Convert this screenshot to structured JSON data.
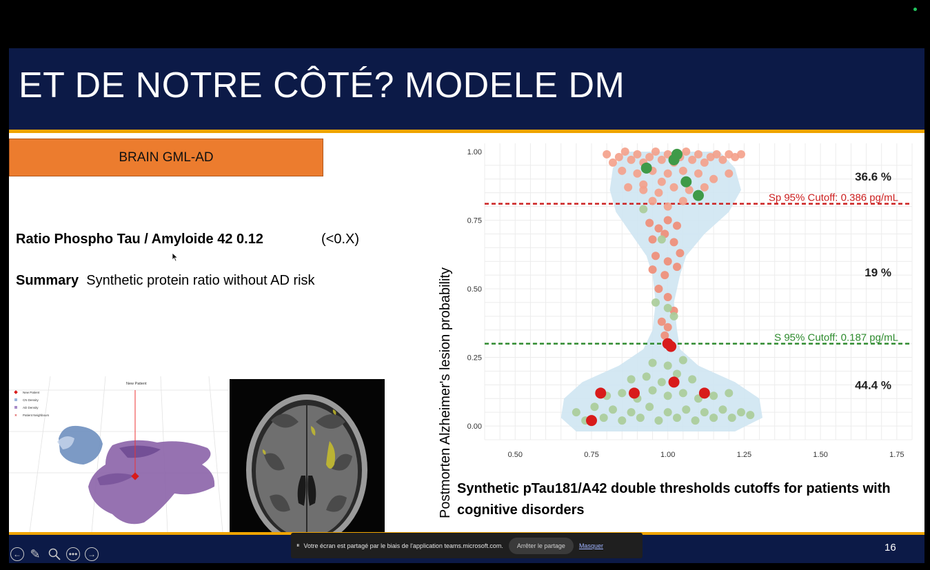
{
  "slide": {
    "title": "ET DE NOTRE CÔTÉ? MODELE DM",
    "badge": "BRAIN GML-AD",
    "ratio_line": "Ratio Phospho Tau / Amyloide 42  0.12",
    "ratio_hint": "(<0.X)",
    "summary_label": "Summary",
    "summary_text": "Synthetic protein ratio without AD risk",
    "page_number": "16",
    "figure_3d": {
      "title": "New Patient",
      "legend": [
        "New Patient",
        "CN Density",
        "AD Density",
        "Patient Neighbours"
      ]
    },
    "chart_caption": "Synthetic pTau181/A42 double thresholds cutoffs for patients with cognitive disorders"
  },
  "chart_data": {
    "type": "scatter",
    "ylabel": "Postmorten Alzheimer's lesion probability",
    "xlim": [
      0.4,
      1.8
    ],
    "ylim": [
      -0.05,
      1.03
    ],
    "xticks": [
      "0.50",
      "0.75",
      "1.00",
      "1.25",
      "1.50",
      "1.75"
    ],
    "yticks": [
      "0.00",
      "0.25",
      "0.50",
      "0.75",
      "1.00"
    ],
    "thresholds": [
      {
        "y": 0.81,
        "label": "Sp 95% Cutoff: 0.386 pg/mL",
        "color": "#cc2020"
      },
      {
        "y": 0.3,
        "label": "S 95% Cutoff: 0.187 pg/mL",
        "color": "#2e8b2e"
      }
    ],
    "region_labels": [
      {
        "y": 0.91,
        "text": "36.6 %"
      },
      {
        "y": 0.56,
        "text": "19 %"
      },
      {
        "y": 0.15,
        "text": "44.4 %"
      }
    ],
    "series": [
      {
        "group": "high",
        "color": "#f4a08a",
        "points": [
          [
            0.8,
            0.99
          ],
          [
            0.82,
            0.96
          ],
          [
            0.84,
            0.98
          ],
          [
            0.86,
            1.0
          ],
          [
            0.88,
            0.97
          ],
          [
            0.9,
            0.99
          ],
          [
            0.92,
            0.96
          ],
          [
            0.94,
            0.98
          ],
          [
            0.96,
            1.0
          ],
          [
            0.98,
            0.97
          ],
          [
            1.0,
            0.99
          ],
          [
            1.02,
            0.96
          ],
          [
            1.04,
            0.98
          ],
          [
            1.06,
            1.0
          ],
          [
            1.08,
            0.97
          ],
          [
            1.1,
            0.99
          ],
          [
            1.12,
            0.96
          ],
          [
            1.14,
            0.98
          ],
          [
            1.16,
            0.99
          ],
          [
            1.18,
            0.97
          ],
          [
            1.2,
            0.99
          ],
          [
            1.22,
            0.98
          ],
          [
            1.24,
            0.99
          ],
          [
            0.85,
            0.93
          ],
          [
            0.9,
            0.92
          ],
          [
            0.95,
            0.93
          ],
          [
            1.0,
            0.92
          ],
          [
            1.05,
            0.93
          ],
          [
            1.1,
            0.92
          ],
          [
            1.15,
            0.9
          ],
          [
            1.2,
            0.92
          ],
          [
            0.87,
            0.87
          ],
          [
            0.92,
            0.86
          ],
          [
            0.97,
            0.85
          ],
          [
            1.02,
            0.87
          ],
          [
            1.07,
            0.86
          ],
          [
            1.12,
            0.87
          ],
          [
            0.95,
            0.82
          ],
          [
            1.0,
            0.8
          ],
          [
            1.05,
            0.82
          ],
          [
            1.1,
            0.84
          ],
          [
            0.92,
            0.88
          ],
          [
            0.98,
            0.89
          ]
        ]
      },
      {
        "group": "mid",
        "color": "#f08c76",
        "points": [
          [
            0.94,
            0.74
          ],
          [
            0.97,
            0.72
          ],
          [
            1.0,
            0.75
          ],
          [
            1.03,
            0.73
          ],
          [
            0.95,
            0.68
          ],
          [
            0.99,
            0.7
          ],
          [
            1.02,
            0.67
          ],
          [
            0.96,
            0.62
          ],
          [
            1.0,
            0.6
          ],
          [
            1.04,
            0.63
          ],
          [
            0.95,
            0.57
          ],
          [
            0.99,
            0.55
          ],
          [
            1.03,
            0.58
          ],
          [
            0.97,
            0.5
          ],
          [
            1.0,
            0.47
          ],
          [
            1.02,
            0.42
          ],
          [
            0.98,
            0.38
          ],
          [
            1.0,
            0.36
          ],
          [
            0.99,
            0.33
          ]
        ]
      },
      {
        "group": "low",
        "color": "#aacc98",
        "points": [
          [
            0.7,
            0.05
          ],
          [
            0.73,
            0.02
          ],
          [
            0.76,
            0.07
          ],
          [
            0.79,
            0.03
          ],
          [
            0.82,
            0.06
          ],
          [
            0.85,
            0.02
          ],
          [
            0.88,
            0.05
          ],
          [
            0.91,
            0.03
          ],
          [
            0.94,
            0.07
          ],
          [
            0.97,
            0.02
          ],
          [
            1.0,
            0.05
          ],
          [
            1.03,
            0.03
          ],
          [
            1.06,
            0.06
          ],
          [
            1.09,
            0.02
          ],
          [
            1.12,
            0.05
          ],
          [
            1.15,
            0.03
          ],
          [
            1.18,
            0.06
          ],
          [
            1.21,
            0.03
          ],
          [
            1.24,
            0.05
          ],
          [
            1.27,
            0.04
          ],
          [
            0.8,
            0.11
          ],
          [
            0.85,
            0.12
          ],
          [
            0.9,
            0.1
          ],
          [
            0.95,
            0.13
          ],
          [
            1.0,
            0.11
          ],
          [
            1.05,
            0.12
          ],
          [
            1.1,
            0.1
          ],
          [
            1.15,
            0.11
          ],
          [
            1.2,
            0.12
          ],
          [
            0.88,
            0.17
          ],
          [
            0.93,
            0.18
          ],
          [
            0.98,
            0.16
          ],
          [
            1.03,
            0.19
          ],
          [
            1.08,
            0.17
          ],
          [
            0.95,
            0.23
          ],
          [
            1.0,
            0.22
          ],
          [
            1.05,
            0.24
          ],
          [
            0.92,
            0.79
          ],
          [
            0.98,
            0.68
          ],
          [
            0.96,
            0.45
          ],
          [
            1.0,
            0.43
          ],
          [
            1.02,
            0.4
          ]
        ]
      },
      {
        "group": "green",
        "color": "#3f9a48",
        "points": [
          [
            0.93,
            0.94
          ],
          [
            1.02,
            0.97
          ],
          [
            1.03,
            0.99
          ],
          [
            1.06,
            0.89
          ],
          [
            1.1,
            0.84
          ]
        ]
      },
      {
        "group": "red",
        "color": "#d81b1b",
        "points": [
          [
            0.78,
            0.12
          ],
          [
            0.75,
            0.02
          ],
          [
            0.89,
            0.12
          ],
          [
            1.02,
            0.16
          ],
          [
            1.12,
            0.12
          ],
          [
            1.0,
            0.3
          ],
          [
            1.01,
            0.29
          ]
        ]
      }
    ]
  },
  "ui": {
    "share_message": "Votre écran est partagé par le biais de l'application teams.microsoft.com.",
    "stop_share": "Arrêter le partage",
    "hide": "Masquer"
  }
}
